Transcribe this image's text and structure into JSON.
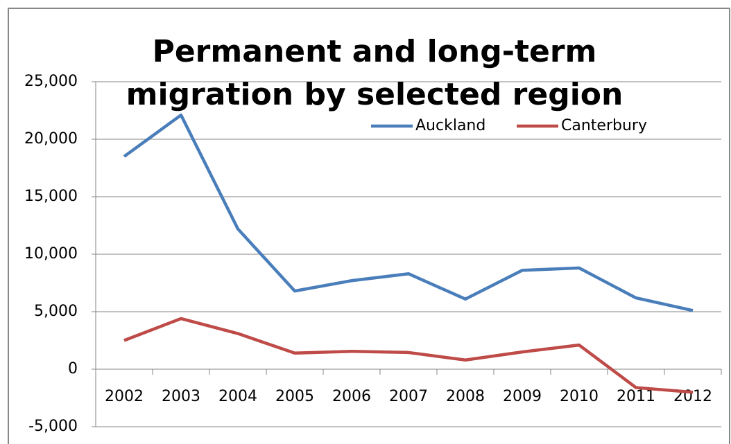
{
  "chart_data": {
    "type": "line",
    "title": "Permanent and long-term migration by selected region",
    "categories": [
      "2002",
      "2003",
      "2004",
      "2005",
      "2006",
      "2007",
      "2008",
      "2009",
      "2010",
      "2011",
      "2012"
    ],
    "series": [
      {
        "name": "Auckland",
        "color": "#4a7ebb",
        "values": [
          18500,
          22100,
          12200,
          6800,
          7700,
          8300,
          6100,
          8600,
          8800,
          6200,
          5100
        ]
      },
      {
        "name": "Canterbury",
        "color": "#be4b48",
        "values": [
          2500,
          4400,
          3100,
          1400,
          1550,
          1450,
          800,
          1500,
          2100,
          -1600,
          -2000
        ]
      }
    ],
    "ylim": [
      -5000,
      25000
    ],
    "yticks": [
      {
        "value": -5000,
        "label": "-5,000"
      },
      0,
      {
        "value": 5000,
        "label": "5,000"
      },
      {
        "value": 10000,
        "label": "10,000"
      },
      {
        "value": 15000,
        "label": "15,000"
      },
      {
        "value": 20000,
        "label": "20,000"
      },
      {
        "value": 25000,
        "label": "25,000"
      }
    ],
    "grid": true
  }
}
